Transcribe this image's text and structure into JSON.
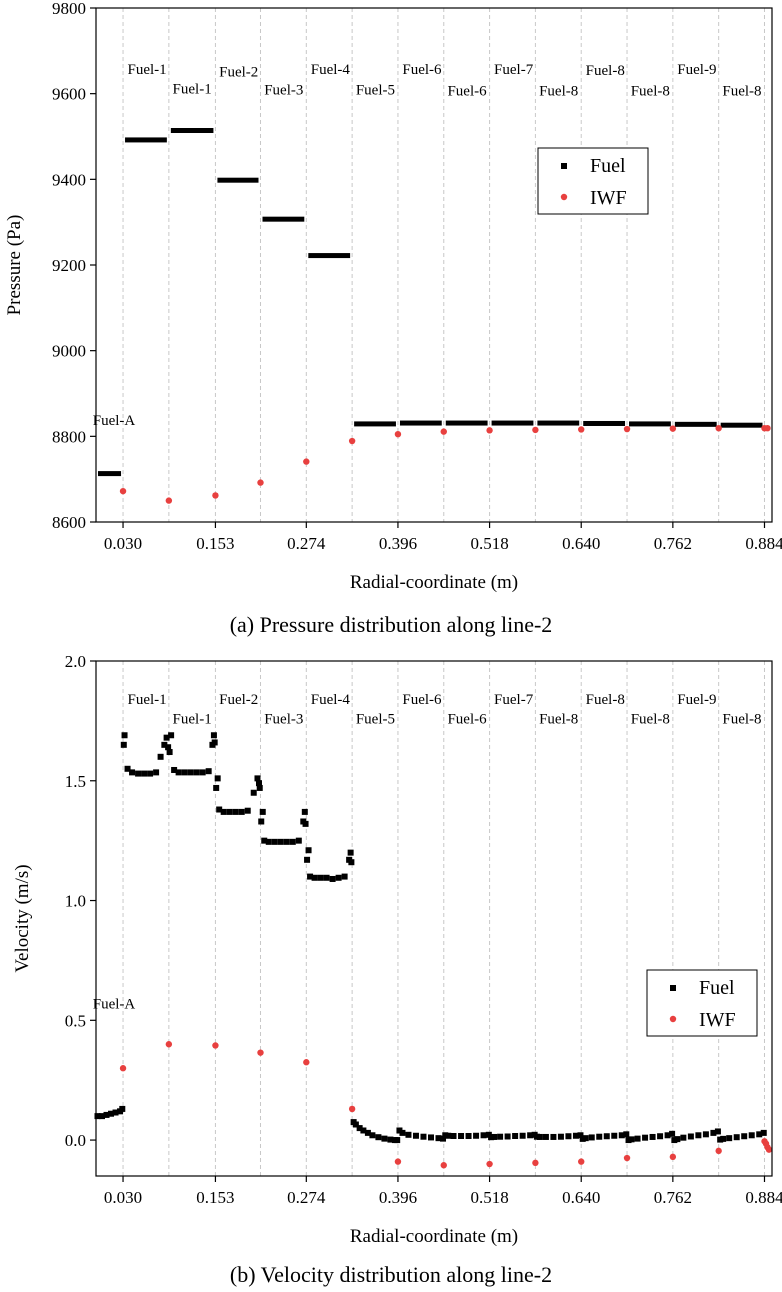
{
  "chart_data": [
    {
      "id": "pressure",
      "type": "scatter",
      "caption": "(a)  Pressure distribution along line-2",
      "xlabel": "Radial-coordinate (m)",
      "ylabel": "Pressure (Pa)",
      "xlim": [
        -0.006,
        0.894
      ],
      "ylim": [
        8600,
        9800
      ],
      "xticks": [
        "0.030",
        "0.153",
        "0.274",
        "0.396",
        "0.518",
        "0.640",
        "0.762",
        "0.884"
      ],
      "yticks": [
        8600,
        8800,
        9000,
        9200,
        9400,
        9600,
        9800
      ],
      "boundaries": [
        0.03,
        0.091,
        0.153,
        0.213,
        0.274,
        0.335,
        0.396,
        0.457,
        0.518,
        0.579,
        0.64,
        0.701,
        0.762,
        0.823,
        0.884
      ],
      "region_labels": [
        {
          "text": "Fuel-A",
          "x": 0.018,
          "y": 8826
        },
        {
          "text": "Fuel-1",
          "x": 0.062,
          "y": 9646
        },
        {
          "text": "Fuel-1",
          "x": 0.122,
          "y": 9600
        },
        {
          "text": "Fuel-2",
          "x": 0.184,
          "y": 9640
        },
        {
          "text": "Fuel-3",
          "x": 0.244,
          "y": 9598
        },
        {
          "text": "Fuel-4",
          "x": 0.306,
          "y": 9646
        },
        {
          "text": "Fuel-5",
          "x": 0.366,
          "y": 9598
        },
        {
          "text": "Fuel-6",
          "x": 0.428,
          "y": 9646
        },
        {
          "text": "Fuel-6",
          "x": 0.488,
          "y": 9596
        },
        {
          "text": "Fuel-7",
          "x": 0.55,
          "y": 9646
        },
        {
          "text": "Fuel-8",
          "x": 0.61,
          "y": 9596
        },
        {
          "text": "Fuel-8",
          "x": 0.672,
          "y": 9644
        },
        {
          "text": "Fuel-8",
          "x": 0.732,
          "y": 9596
        },
        {
          "text": "Fuel-9",
          "x": 0.794,
          "y": 9646
        },
        {
          "text": "Fuel-8",
          "x": 0.854,
          "y": 9596
        }
      ],
      "series": [
        {
          "name": "Fuel",
          "color": "#000000",
          "marker": "square",
          "segments": [
            {
              "x0": -0.006,
              "x1": 0.03,
              "y": 8713
            },
            {
              "x0": 0.03,
              "x1": 0.091,
              "y": 9492
            },
            {
              "x0": 0.091,
              "x1": 0.153,
              "y": 9514
            },
            {
              "x0": 0.153,
              "x1": 0.213,
              "y": 9398
            },
            {
              "x0": 0.213,
              "x1": 0.274,
              "y": 9307
            },
            {
              "x0": 0.274,
              "x1": 0.335,
              "y": 9222
            },
            {
              "x0": 0.335,
              "x1": 0.396,
              "y": 8829
            },
            {
              "x0": 0.396,
              "x1": 0.457,
              "y": 8831
            },
            {
              "x0": 0.457,
              "x1": 0.518,
              "y": 8831
            },
            {
              "x0": 0.518,
              "x1": 0.579,
              "y": 8831
            },
            {
              "x0": 0.579,
              "x1": 0.64,
              "y": 8831
            },
            {
              "x0": 0.64,
              "x1": 0.701,
              "y": 8830
            },
            {
              "x0": 0.701,
              "x1": 0.762,
              "y": 8829
            },
            {
              "x0": 0.762,
              "x1": 0.823,
              "y": 8828
            },
            {
              "x0": 0.823,
              "x1": 0.884,
              "y": 8826
            }
          ]
        },
        {
          "name": "IWF",
          "color": "#e8403f",
          "marker": "circle",
          "x": [
            0.03,
            0.091,
            0.153,
            0.213,
            0.274,
            0.335,
            0.396,
            0.457,
            0.518,
            0.579,
            0.64,
            0.701,
            0.762,
            0.823,
            0.884,
            0.888
          ],
          "y": [
            8672,
            8650,
            8662,
            8692,
            8741,
            8789,
            8805,
            8811,
            8814,
            8815,
            8816,
            8817,
            8818,
            8819,
            8819,
            8819
          ]
        }
      ],
      "legend": {
        "position": "right",
        "entries": [
          "Fuel",
          "IWF"
        ]
      }
    },
    {
      "id": "velocity",
      "type": "scatter",
      "caption": "(b) Velocity distribution along line-2",
      "xlabel": "Radial-coordinate (m)",
      "ylabel": "Velocity (m/s)",
      "xlim": [
        -0.006,
        0.894
      ],
      "ylim": [
        -0.15,
        2.0
      ],
      "xticks": [
        "0.030",
        "0.153",
        "0.274",
        "0.396",
        "0.518",
        "0.640",
        "0.762",
        "0.884"
      ],
      "yticks": [
        "0.0",
        "0.5",
        "1.0",
        "1.5",
        "2.0"
      ],
      "boundaries": [
        0.03,
        0.091,
        0.153,
        0.213,
        0.274,
        0.335,
        0.396,
        0.457,
        0.518,
        0.579,
        0.64,
        0.701,
        0.762,
        0.823,
        0.884
      ],
      "region_labels": [
        {
          "text": "Fuel-A",
          "x": 0.018,
          "y": 0.55
        },
        {
          "text": "Fuel-1",
          "x": 0.062,
          "y": 1.82
        },
        {
          "text": "Fuel-1",
          "x": 0.122,
          "y": 1.74
        },
        {
          "text": "Fuel-2",
          "x": 0.184,
          "y": 1.82
        },
        {
          "text": "Fuel-3",
          "x": 0.244,
          "y": 1.74
        },
        {
          "text": "Fuel-4",
          "x": 0.306,
          "y": 1.82
        },
        {
          "text": "Fuel-5",
          "x": 0.366,
          "y": 1.74
        },
        {
          "text": "Fuel-6",
          "x": 0.428,
          "y": 1.82
        },
        {
          "text": "Fuel-6",
          "x": 0.488,
          "y": 1.74
        },
        {
          "text": "Fuel-7",
          "x": 0.55,
          "y": 1.82
        },
        {
          "text": "Fuel-8",
          "x": 0.61,
          "y": 1.74
        },
        {
          "text": "Fuel-8",
          "x": 0.672,
          "y": 1.82
        },
        {
          "text": "Fuel-8",
          "x": 0.732,
          "y": 1.74
        },
        {
          "text": "Fuel-9",
          "x": 0.794,
          "y": 1.82
        },
        {
          "text": "Fuel-8",
          "x": 0.854,
          "y": 1.74
        }
      ],
      "series": [
        {
          "name": "Fuel",
          "color": "#000000",
          "marker": "square",
          "x": [
            -0.004,
            0.002,
            0.008,
            0.014,
            0.02,
            0.026,
            0.029,
            0.031,
            0.032,
            0.036,
            0.042,
            0.05,
            0.058,
            0.066,
            0.074,
            0.08,
            0.085,
            0.088,
            0.09,
            0.092,
            0.094,
            0.098,
            0.104,
            0.112,
            0.12,
            0.128,
            0.136,
            0.144,
            0.149,
            0.151,
            0.152,
            0.154,
            0.156,
            0.158,
            0.164,
            0.172,
            0.18,
            0.188,
            0.196,
            0.204,
            0.209,
            0.211,
            0.212,
            0.214,
            0.216,
            0.218,
            0.224,
            0.232,
            0.24,
            0.248,
            0.256,
            0.264,
            0.27,
            0.272,
            0.273,
            0.275,
            0.277,
            0.279,
            0.285,
            0.293,
            0.301,
            0.309,
            0.317,
            0.325,
            0.331,
            0.333,
            0.334,
            0.337,
            0.34,
            0.345,
            0.35,
            0.356,
            0.362,
            0.37,
            0.378,
            0.386,
            0.392,
            0.395,
            0.398,
            0.402,
            0.41,
            0.42,
            0.43,
            0.44,
            0.45,
            0.456,
            0.459,
            0.463,
            0.47,
            0.48,
            0.49,
            0.5,
            0.51,
            0.517,
            0.52,
            0.524,
            0.532,
            0.542,
            0.552,
            0.562,
            0.572,
            0.578,
            0.581,
            0.585,
            0.593,
            0.603,
            0.613,
            0.623,
            0.633,
            0.639,
            0.642,
            0.646,
            0.654,
            0.664,
            0.674,
            0.684,
            0.694,
            0.7,
            0.703,
            0.707,
            0.715,
            0.725,
            0.735,
            0.745,
            0.755,
            0.761,
            0.764,
            0.768,
            0.776,
            0.786,
            0.796,
            0.806,
            0.816,
            0.822,
            0.825,
            0.829,
            0.837,
            0.847,
            0.857,
            0.867,
            0.877,
            0.883
          ],
          "y": [
            0.1,
            0.1,
            0.105,
            0.11,
            0.115,
            0.12,
            0.13,
            1.65,
            1.69,
            1.55,
            1.535,
            1.53,
            1.53,
            1.53,
            1.535,
            1.6,
            1.65,
            1.68,
            1.64,
            1.62,
            1.69,
            1.545,
            1.535,
            1.535,
            1.535,
            1.535,
            1.535,
            1.54,
            1.65,
            1.69,
            1.66,
            1.47,
            1.51,
            1.38,
            1.37,
            1.37,
            1.37,
            1.37,
            1.375,
            1.45,
            1.51,
            1.49,
            1.47,
            1.33,
            1.37,
            1.25,
            1.245,
            1.245,
            1.245,
            1.245,
            1.245,
            1.25,
            1.33,
            1.37,
            1.32,
            1.17,
            1.21,
            1.1,
            1.095,
            1.095,
            1.095,
            1.09,
            1.095,
            1.1,
            1.17,
            1.2,
            1.16,
            0.075,
            0.065,
            0.05,
            0.04,
            0.03,
            0.02,
            0.012,
            0.006,
            0.002,
            0.0,
            0.0,
            0.04,
            0.03,
            0.022,
            0.018,
            0.014,
            0.011,
            0.008,
            0.006,
            0.02,
            0.018,
            0.017,
            0.017,
            0.017,
            0.018,
            0.02,
            0.022,
            0.012,
            0.013,
            0.014,
            0.015,
            0.017,
            0.018,
            0.02,
            0.022,
            0.014,
            0.013,
            0.013,
            0.013,
            0.014,
            0.016,
            0.018,
            0.02,
            0.005,
            0.008,
            0.011,
            0.014,
            0.016,
            0.018,
            0.02,
            0.024,
            0.0,
            0.003,
            0.006,
            0.01,
            0.013,
            0.016,
            0.02,
            0.026,
            0.0,
            0.004,
            0.01,
            0.015,
            0.02,
            0.024,
            0.03,
            0.036,
            0.002,
            0.005,
            0.008,
            0.012,
            0.016,
            0.02,
            0.024,
            0.03
          ]
        },
        {
          "name": "IWF",
          "color": "#e8403f",
          "marker": "circle",
          "x": [
            0.03,
            0.091,
            0.153,
            0.213,
            0.274,
            0.335,
            0.396,
            0.457,
            0.518,
            0.579,
            0.64,
            0.701,
            0.762,
            0.823,
            0.884,
            0.886,
            0.888,
            0.89
          ],
          "y": [
            0.3,
            0.4,
            0.395,
            0.365,
            0.325,
            0.13,
            -0.09,
            -0.105,
            -0.1,
            -0.095,
            -0.09,
            -0.075,
            -0.07,
            -0.045,
            -0.005,
            -0.015,
            -0.03,
            -0.04
          ]
        }
      ],
      "legend": {
        "position": "right",
        "entries": [
          "Fuel",
          "IWF"
        ]
      }
    }
  ]
}
